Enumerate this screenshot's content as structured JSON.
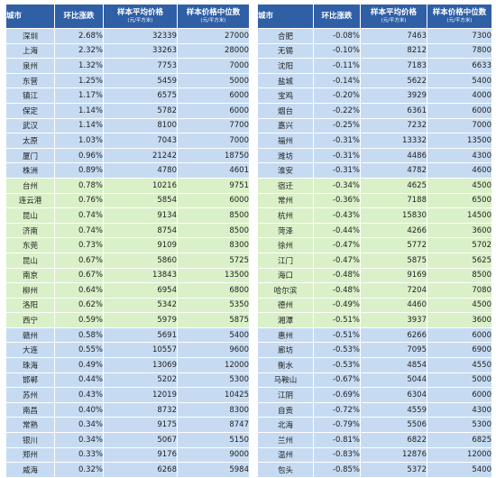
{
  "headers": {
    "city": "城市",
    "change": "环比涨跌",
    "avg": "样本平均价格",
    "median": "样本价格中位数",
    "unit": "(元/平方米)"
  },
  "colors": {
    "header_bg": "#2f5fa5",
    "blue_band": "#c6dbf2",
    "green_band": "#daf0c8"
  },
  "left_rows": [
    {
      "city": "深圳",
      "change": "2.68%",
      "avg": "32339",
      "median": "27000",
      "band": "blue"
    },
    {
      "city": "上海",
      "change": "2.32%",
      "avg": "33263",
      "median": "28000",
      "band": "blue"
    },
    {
      "city": "泉州",
      "change": "1.32%",
      "avg": "7753",
      "median": "7000",
      "band": "blue"
    },
    {
      "city": "东营",
      "change": "1.25%",
      "avg": "5459",
      "median": "5000",
      "band": "blue"
    },
    {
      "city": "镇江",
      "change": "1.17%",
      "avg": "6575",
      "median": "6000",
      "band": "blue"
    },
    {
      "city": "保定",
      "change": "1.14%",
      "avg": "5782",
      "median": "6000",
      "band": "blue"
    },
    {
      "city": "武汉",
      "change": "1.14%",
      "avg": "8100",
      "median": "7700",
      "band": "blue"
    },
    {
      "city": "太原",
      "change": "1.03%",
      "avg": "7043",
      "median": "7000",
      "band": "blue"
    },
    {
      "city": "厦门",
      "change": "0.96%",
      "avg": "21242",
      "median": "18750",
      "band": "blue"
    },
    {
      "city": "株洲",
      "change": "0.89%",
      "avg": "4780",
      "median": "4601",
      "band": "blue"
    },
    {
      "city": "台州",
      "change": "0.78%",
      "avg": "10216",
      "median": "9751",
      "band": "green"
    },
    {
      "city": "连云港",
      "change": "0.76%",
      "avg": "5854",
      "median": "6000",
      "band": "green"
    },
    {
      "city": "昆山",
      "change": "0.74%",
      "avg": "9134",
      "median": "8500",
      "band": "green"
    },
    {
      "city": "济南",
      "change": "0.74%",
      "avg": "8754",
      "median": "8500",
      "band": "green"
    },
    {
      "city": "东莞",
      "change": "0.73%",
      "avg": "9109",
      "median": "8300",
      "band": "green"
    },
    {
      "city": "昆山",
      "change": "0.67%",
      "avg": "5860",
      "median": "5725",
      "band": "green"
    },
    {
      "city": "南京",
      "change": "0.67%",
      "avg": "13843",
      "median": "13500",
      "band": "green"
    },
    {
      "city": "柳州",
      "change": "0.64%",
      "avg": "6954",
      "median": "6800",
      "band": "green"
    },
    {
      "city": "洛阳",
      "change": "0.62%",
      "avg": "5342",
      "median": "5350",
      "band": "green"
    },
    {
      "city": "西宁",
      "change": "0.59%",
      "avg": "5979",
      "median": "5875",
      "band": "green"
    },
    {
      "city": "赣州",
      "change": "0.58%",
      "avg": "5691",
      "median": "5400",
      "band": "blue"
    },
    {
      "city": "大连",
      "change": "0.55%",
      "avg": "10557",
      "median": "9600",
      "band": "blue"
    },
    {
      "city": "珠海",
      "change": "0.49%",
      "avg": "13069",
      "median": "12000",
      "band": "blue"
    },
    {
      "city": "邯郸",
      "change": "0.44%",
      "avg": "5202",
      "median": "5300",
      "band": "blue"
    },
    {
      "city": "苏州",
      "change": "0.43%",
      "avg": "12019",
      "median": "10425",
      "band": "blue"
    },
    {
      "city": "南昌",
      "change": "0.40%",
      "avg": "8732",
      "median": "8300",
      "band": "blue"
    },
    {
      "city": "常熟",
      "change": "0.34%",
      "avg": "9175",
      "median": "8747",
      "band": "blue"
    },
    {
      "city": "银川",
      "change": "0.34%",
      "avg": "5067",
      "median": "5150",
      "band": "blue"
    },
    {
      "city": "郑州",
      "change": "0.33%",
      "avg": "9176",
      "median": "9000",
      "band": "blue"
    },
    {
      "city": "威海",
      "change": "0.32%",
      "avg": "6268",
      "median": "5984",
      "band": "blue"
    }
  ],
  "right_rows": [
    {
      "city": "合肥",
      "change": "-0.08%",
      "avg": "7463",
      "median": "7300",
      "band": "blue"
    },
    {
      "city": "无锡",
      "change": "-0.10%",
      "avg": "8212",
      "median": "7800",
      "band": "blue"
    },
    {
      "city": "沈阳",
      "change": "-0.11%",
      "avg": "7183",
      "median": "6633",
      "band": "blue"
    },
    {
      "city": "盐城",
      "change": "-0.14%",
      "avg": "5622",
      "median": "5400",
      "band": "blue"
    },
    {
      "city": "宝鸡",
      "change": "-0.20%",
      "avg": "3929",
      "median": "4000",
      "band": "blue"
    },
    {
      "city": "烟台",
      "change": "-0.22%",
      "avg": "6361",
      "median": "6000",
      "band": "blue"
    },
    {
      "city": "嘉兴",
      "change": "-0.25%",
      "avg": "7232",
      "median": "7000",
      "band": "blue"
    },
    {
      "city": "福州",
      "change": "-0.31%",
      "avg": "13332",
      "median": "13500",
      "band": "blue"
    },
    {
      "city": "潍坊",
      "change": "-0.31%",
      "avg": "4486",
      "median": "4300",
      "band": "blue"
    },
    {
      "city": "淮安",
      "change": "-0.31%",
      "avg": "4782",
      "median": "4600",
      "band": "blue"
    },
    {
      "city": "宿迁",
      "change": "-0.34%",
      "avg": "4625",
      "median": "4500",
      "band": "green"
    },
    {
      "city": "常州",
      "change": "-0.36%",
      "avg": "7188",
      "median": "6500",
      "band": "green"
    },
    {
      "city": "杭州",
      "change": "-0.43%",
      "avg": "15830",
      "median": "14500",
      "band": "green"
    },
    {
      "city": "菏泽",
      "change": "-0.44%",
      "avg": "4266",
      "median": "3600",
      "band": "green"
    },
    {
      "city": "徐州",
      "change": "-0.47%",
      "avg": "5772",
      "median": "5702",
      "band": "green"
    },
    {
      "city": "江门",
      "change": "-0.47%",
      "avg": "5875",
      "median": "5625",
      "band": "green"
    },
    {
      "city": "海口",
      "change": "-0.48%",
      "avg": "9169",
      "median": "8500",
      "band": "green"
    },
    {
      "city": "哈尔滨",
      "change": "-0.48%",
      "avg": "7204",
      "median": "7080",
      "band": "green"
    },
    {
      "city": "德州",
      "change": "-0.49%",
      "avg": "4460",
      "median": "4500",
      "band": "green"
    },
    {
      "city": "湘潭",
      "change": "-0.51%",
      "avg": "3937",
      "median": "3600",
      "band": "green"
    },
    {
      "city": "惠州",
      "change": "-0.51%",
      "avg": "6266",
      "median": "6000",
      "band": "blue"
    },
    {
      "city": "廊坊",
      "change": "-0.53%",
      "avg": "7095",
      "median": "6900",
      "band": "blue"
    },
    {
      "city": "衡水",
      "change": "-0.53%",
      "avg": "4854",
      "median": "4550",
      "band": "blue"
    },
    {
      "city": "马鞍山",
      "change": "-0.67%",
      "avg": "5044",
      "median": "5000",
      "band": "blue"
    },
    {
      "city": "江阴",
      "change": "-0.69%",
      "avg": "6304",
      "median": "6000",
      "band": "blue"
    },
    {
      "city": "自贡",
      "change": "-0.72%",
      "avg": "4559",
      "median": "4300",
      "band": "blue"
    },
    {
      "city": "北海",
      "change": "-0.79%",
      "avg": "5506",
      "median": "5300",
      "band": "blue"
    },
    {
      "city": "兰州",
      "change": "-0.81%",
      "avg": "6822",
      "median": "6825",
      "band": "blue"
    },
    {
      "city": "温州",
      "change": "-0.83%",
      "avg": "12876",
      "median": "12000",
      "band": "blue"
    },
    {
      "city": "包头",
      "change": "-0.85%",
      "avg": "5372",
      "median": "5400",
      "band": "blue"
    }
  ]
}
